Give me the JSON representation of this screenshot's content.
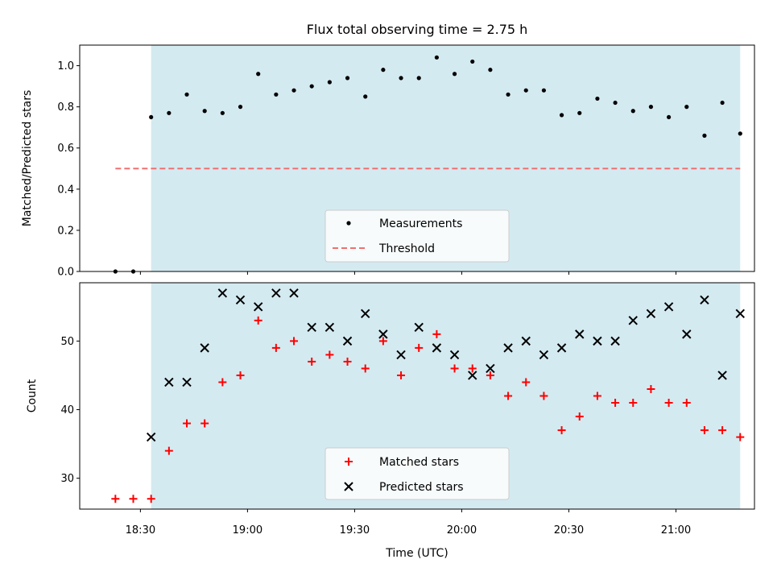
{
  "chart_data": [
    {
      "type": "scatter",
      "title": "Flux total observing time = 2.75 h",
      "xlabel": "",
      "ylabel": "Matched/Predicted stars",
      "ylim": [
        0,
        1.1
      ],
      "yticks": [
        "0.0",
        "0.2",
        "0.4",
        "0.6",
        "0.8",
        "1.0"
      ],
      "shaded_interval": [
        "18:33",
        "21:18"
      ],
      "shade_color": "#d4eaf1",
      "legend_position": "lower-center",
      "series": [
        {
          "name": "Measurements",
          "marker": "dot",
          "color": "#000000",
          "x": [
            "18:23",
            "18:28",
            "18:33",
            "18:38",
            "18:43",
            "18:48",
            "18:53",
            "18:58",
            "19:03",
            "19:08",
            "19:13",
            "19:18",
            "19:23",
            "19:28",
            "19:33",
            "19:38",
            "19:43",
            "19:48",
            "19:53",
            "19:58",
            "20:03",
            "20:08",
            "20:13",
            "20:18",
            "20:23",
            "20:28",
            "20:33",
            "20:38",
            "20:43",
            "20:48",
            "20:53",
            "20:58",
            "21:03",
            "21:08",
            "21:13",
            "21:18"
          ],
          "y": [
            0.0,
            0.0,
            0.75,
            0.77,
            0.86,
            0.78,
            0.77,
            0.8,
            0.96,
            0.86,
            0.88,
            0.9,
            0.92,
            0.94,
            0.85,
            0.98,
            0.94,
            0.94,
            1.04,
            0.96,
            1.02,
            0.98,
            0.86,
            0.88,
            0.88,
            0.76,
            0.77,
            0.84,
            0.82,
            0.78,
            0.8,
            0.75,
            0.8,
            0.66,
            0.82,
            0.67
          ]
        },
        {
          "name": "Threshold",
          "style": "dashed",
          "color": "#f07070",
          "x": [
            "18:23",
            "21:18"
          ],
          "y": [
            0.5,
            0.5
          ]
        }
      ]
    },
    {
      "type": "scatter",
      "xlabel": "Time (UTC)",
      "ylabel": "Count",
      "ylim": [
        25.5,
        58.5
      ],
      "yticks": [
        "30",
        "40",
        "50"
      ],
      "xticks": [
        "18:30",
        "19:00",
        "19:30",
        "20:00",
        "20:30",
        "21:00"
      ],
      "xlim": [
        "18:13",
        "21:22"
      ],
      "shaded_interval": [
        "18:33",
        "21:18"
      ],
      "shade_color": "#d4eaf1",
      "legend_position": "lower-center",
      "series": [
        {
          "name": "Matched stars",
          "marker": "plus",
          "color": "#ff0000",
          "x": [
            "18:23",
            "18:28",
            "18:33",
            "18:38",
            "18:43",
            "18:48",
            "18:53",
            "18:58",
            "19:03",
            "19:08",
            "19:13",
            "19:18",
            "19:23",
            "19:28",
            "19:33",
            "19:38",
            "19:43",
            "19:48",
            "19:53",
            "19:58",
            "20:03",
            "20:08",
            "20:13",
            "20:18",
            "20:23",
            "20:28",
            "20:33",
            "20:38",
            "20:43",
            "20:48",
            "20:53",
            "20:58",
            "21:03",
            "21:08",
            "21:13",
            "21:18"
          ],
          "y": [
            27,
            27,
            27,
            34,
            38,
            38,
            44,
            45,
            53,
            49,
            50,
            47,
            48,
            47,
            46,
            50,
            45,
            49,
            51,
            46,
            46,
            45,
            42,
            44,
            42,
            37,
            39,
            42,
            41,
            41,
            43,
            41,
            41,
            37,
            37,
            36
          ]
        },
        {
          "name": "Predicted stars",
          "marker": "x",
          "color": "#000000",
          "x": [
            "18:33",
            "18:38",
            "18:43",
            "18:48",
            "18:53",
            "18:58",
            "19:03",
            "19:08",
            "19:13",
            "19:18",
            "19:23",
            "19:28",
            "19:33",
            "19:38",
            "19:43",
            "19:48",
            "19:53",
            "19:58",
            "20:03",
            "20:08",
            "20:13",
            "20:18",
            "20:23",
            "20:28",
            "20:33",
            "20:38",
            "20:43",
            "20:48",
            "20:53",
            "20:58",
            "21:03",
            "21:08",
            "21:13",
            "21:18"
          ],
          "y": [
            36,
            44,
            44,
            49,
            57,
            56,
            55,
            57,
            57,
            52,
            52,
            50,
            54,
            51,
            48,
            52,
            49,
            48,
            45,
            46,
            49,
            50,
            48,
            49,
            51,
            50,
            50,
            53,
            54,
            55,
            51,
            56,
            45,
            54
          ]
        }
      ]
    }
  ]
}
